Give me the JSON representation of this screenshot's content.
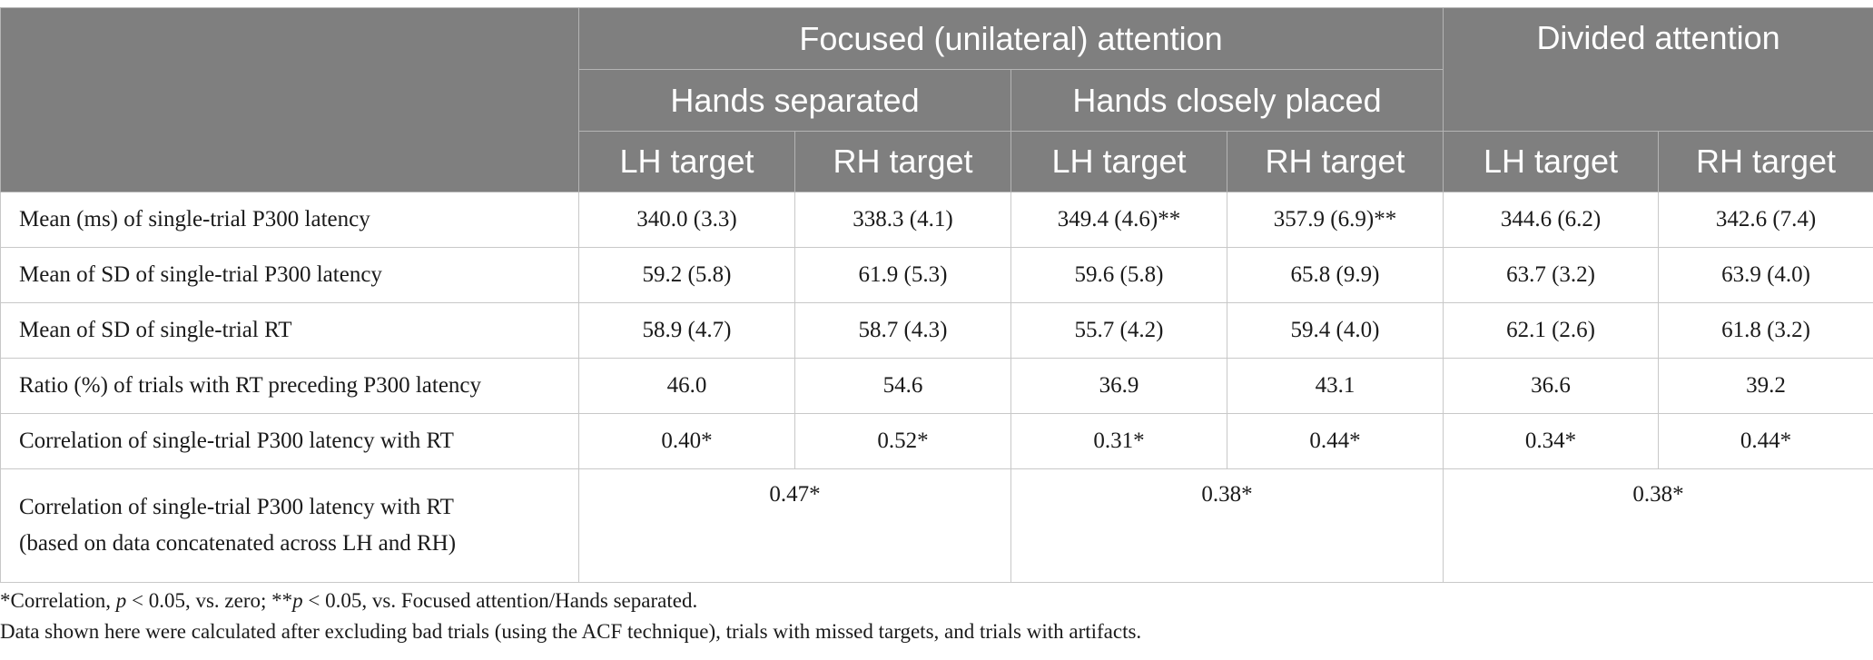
{
  "header": {
    "group_focused": "Focused (unilateral) attention",
    "group_divided": "Divided attention",
    "sub_separated": "Hands separated",
    "sub_closely": "Hands closely placed",
    "col_labels": [
      "LH target",
      "RH target",
      "LH target",
      "RH target",
      "LH target",
      "RH target"
    ]
  },
  "rows": [
    {
      "label": "Mean (ms) of single-trial P300 latency",
      "values": [
        "340.0 (3.3)",
        "338.3 (4.1)",
        "349.4 (4.6)**",
        "357.9 (6.9)**",
        "344.6 (6.2)",
        "342.6 (7.4)"
      ]
    },
    {
      "label": "Mean of SD of single-trial P300 latency",
      "values": [
        "59.2 (5.8)",
        "61.9 (5.3)",
        "59.6 (5.8)",
        "65.8 (9.9)",
        "63.7 (3.2)",
        "63.9 (4.0)"
      ]
    },
    {
      "label": "Mean of SD of single-trial RT",
      "values": [
        "58.9 (4.7)",
        "58.7 (4.3)",
        "55.7 (4.2)",
        "59.4 (4.0)",
        "62.1 (2.6)",
        "61.8 (3.2)"
      ]
    },
    {
      "label": "Ratio (%) of trials with RT preceding P300 latency",
      "values": [
        "46.0",
        "54.6",
        "36.9",
        "43.1",
        "36.6",
        "39.2"
      ]
    },
    {
      "label": "Correlation of single-trial P300 latency with RT",
      "values": [
        "0.40*",
        "0.52*",
        "0.31*",
        "0.44*",
        "0.34*",
        "0.44*"
      ]
    }
  ],
  "last_row": {
    "label_line1": "Correlation of single-trial P300 latency with RT",
    "label_line2": "(based on data concatenated across LH and RH)",
    "values": [
      "0.47*",
      "0.38*",
      "0.38*"
    ]
  },
  "footnotes": {
    "note1_a": "*Correlation, ",
    "note1_p1": "p",
    "note1_b": " < 0.05, vs. zero; **",
    "note1_p2": "p",
    "note1_c": " < 0.05, vs. Focused attention/Hands separated.",
    "note2": "Data shown here were calculated after excluding bad trials (using the ACF technique), trials with missed targets, and trials with artifacts."
  }
}
